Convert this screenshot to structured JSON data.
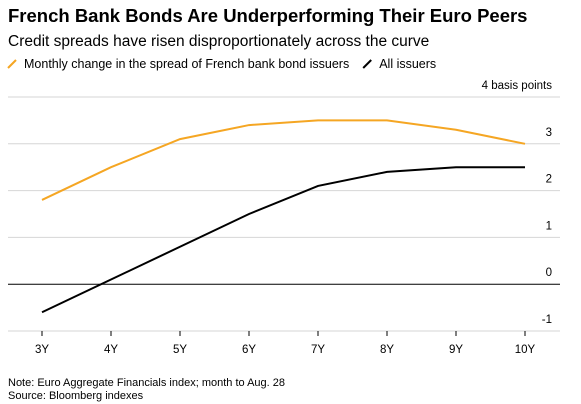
{
  "chart_data": {
    "type": "line",
    "title": "French Bank Bonds Are Underperforming Their Euro Peers",
    "subtitle": "Credit spreads have risen disproportionately across the curve",
    "categories": [
      "3Y",
      "4Y",
      "5Y",
      "6Y",
      "7Y",
      "8Y",
      "9Y",
      "10Y"
    ],
    "series": [
      {
        "name": "Monthly change in the spread of French bank bond issuers",
        "color": "#f5a623",
        "values": [
          1.8,
          2.5,
          3.1,
          3.4,
          3.5,
          3.5,
          3.3,
          3.0
        ]
      },
      {
        "name": "All issuers",
        "color": "#000000",
        "values": [
          -0.6,
          0.1,
          0.8,
          1.5,
          2.1,
          2.4,
          2.5,
          2.5
        ]
      }
    ],
    "ylim": [
      -1,
      4
    ],
    "yticks": [
      -1,
      0,
      1,
      2,
      3,
      {
        "value": 4,
        "label": "4 basis points"
      }
    ],
    "grid": true,
    "note": "Note: Euro Aggregate Financials index; month to Aug. 28",
    "source": "Source: Bloomberg indexes"
  }
}
